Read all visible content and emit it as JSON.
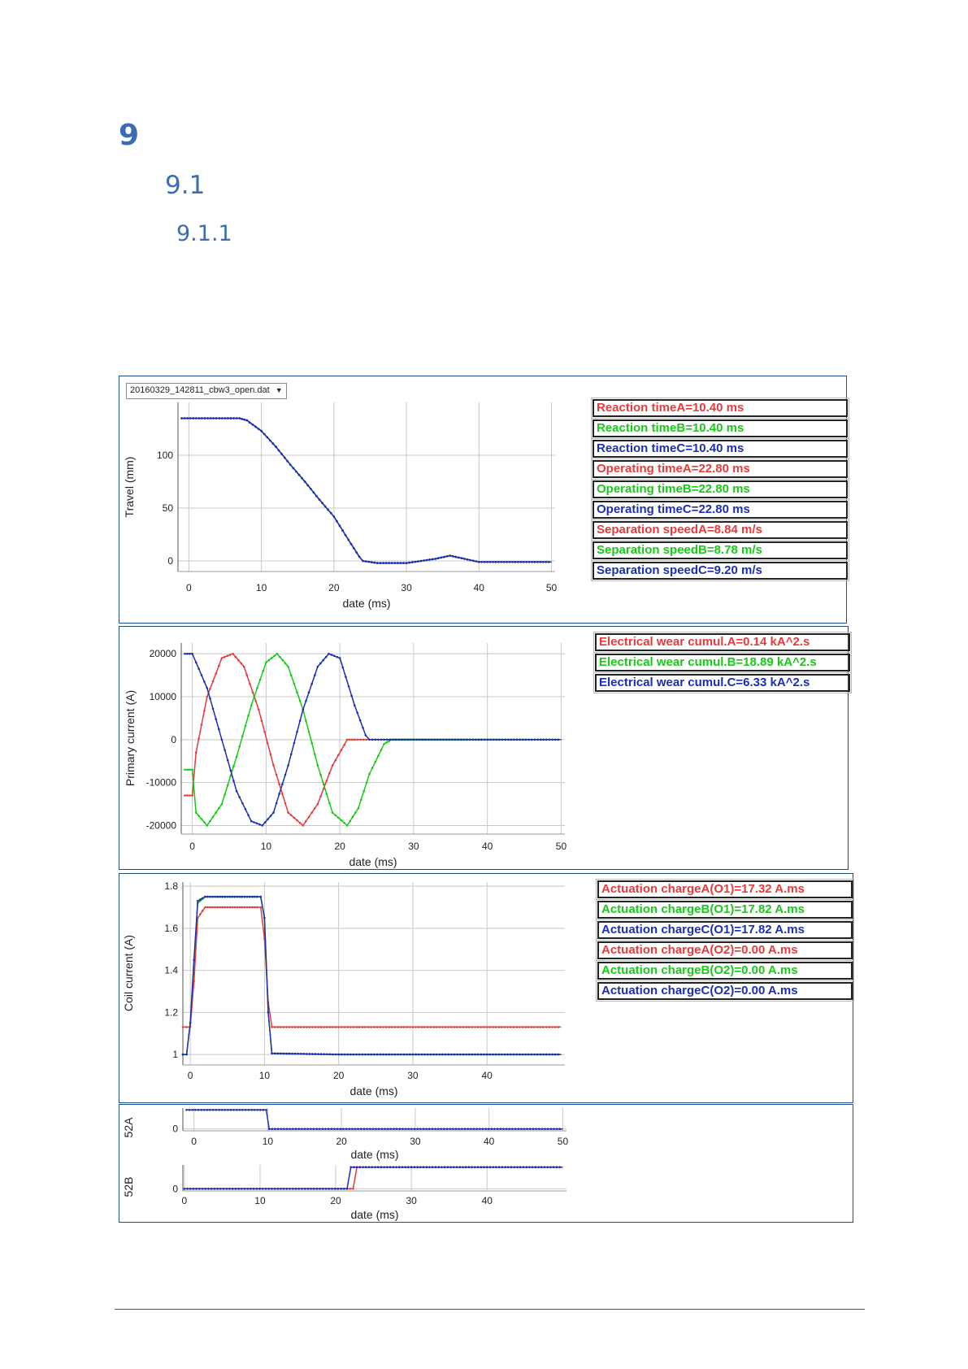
{
  "headings": {
    "h1": "9",
    "h2": "9.1",
    "h3": "9.1.1"
  },
  "colors": {
    "A": "#e53b3b",
    "B": "#18c918",
    "C": "#1c2fb0",
    "frame": "#1e4f86",
    "grid": "#c8c8c8"
  },
  "file_select": {
    "value": "20160329_142811_cbw3_open.dat",
    "icon": "dropdown-arrow-icon"
  },
  "legends": {
    "travel": [
      {
        "text": "Reaction timeA=10.40 ms",
        "phase": "A"
      },
      {
        "text": "Reaction timeB=10.40 ms",
        "phase": "B"
      },
      {
        "text": "Reaction timeC=10.40 ms",
        "phase": "C"
      },
      {
        "text": "Operating timeA=22.80 ms",
        "phase": "A"
      },
      {
        "text": "Operating timeB=22.80 ms",
        "phase": "B"
      },
      {
        "text": "Operating timeC=22.80 ms",
        "phase": "C"
      },
      {
        "text": "Separation speedA=8.84 m/s",
        "phase": "A"
      },
      {
        "text": "Separation speedB=8.78 m/s",
        "phase": "B"
      },
      {
        "text": "Separation speedC=9.20 m/s",
        "phase": "C"
      }
    ],
    "primary": [
      {
        "text": "Electrical wear cumul.A=0.14 kA^2.s",
        "phase": "A"
      },
      {
        "text": "Electrical wear cumul.B=18.89 kA^2.s",
        "phase": "B"
      },
      {
        "text": "Electrical wear cumul.C=6.33 kA^2.s",
        "phase": "C"
      }
    ],
    "coil": [
      {
        "text": "Actuation chargeA(O1)=17.32 A.ms",
        "phase": "A"
      },
      {
        "text": "Actuation chargeB(O1)=17.82 A.ms",
        "phase": "B"
      },
      {
        "text": "Actuation chargeC(O1)=17.82 A.ms",
        "phase": "C"
      },
      {
        "text": "Actuation chargeA(O2)=0.00 A.ms",
        "phase": "A"
      },
      {
        "text": "Actuation chargeB(O2)=0.00 A.ms",
        "phase": "B"
      },
      {
        "text": "Actuation chargeC(O2)=0.00 A.ms",
        "phase": "C"
      }
    ]
  },
  "chart_data": [
    {
      "id": "travel",
      "type": "line",
      "xlabel": "date (ms)",
      "ylabel": "Travel (mm)",
      "xlim": [
        -1.5,
        50.5
      ],
      "ylim": [
        -10,
        150
      ],
      "xticks": [
        0,
        10,
        20,
        30,
        40,
        50
      ],
      "yticks": [
        0,
        50,
        100
      ],
      "grid": true,
      "series": [
        {
          "phase": "A",
          "x": [
            -1,
            7,
            8,
            10,
            12,
            14,
            16,
            18,
            20,
            22,
            23.5,
            24,
            26,
            30,
            34,
            36,
            38,
            40,
            45,
            50
          ],
          "y": [
            135,
            135,
            133,
            123,
            108,
            91,
            75,
            58,
            42,
            20,
            4,
            0,
            -2,
            -2,
            2,
            5,
            2,
            -1,
            -1,
            -1
          ]
        },
        {
          "phase": "B",
          "x": [
            -1,
            7,
            8,
            10,
            12,
            14,
            16,
            18,
            20,
            22,
            23.5,
            24,
            26,
            30,
            34,
            36,
            38,
            40,
            45,
            50
          ],
          "y": [
            135,
            135,
            133,
            123,
            108,
            91,
            75,
            58,
            42,
            20,
            4,
            0,
            -2,
            -2,
            2,
            5,
            2,
            -1,
            -1,
            -1
          ]
        },
        {
          "phase": "C",
          "x": [
            -1,
            7,
            8,
            10,
            12,
            14,
            16,
            18,
            20,
            22,
            23.5,
            24,
            26,
            30,
            34,
            36,
            38,
            40,
            45,
            50
          ],
          "y": [
            135,
            135,
            133,
            123,
            108,
            91,
            75,
            58,
            42,
            20,
            4,
            0,
            -2,
            -2,
            2,
            5,
            2,
            -1,
            -1,
            -1
          ]
        }
      ]
    },
    {
      "id": "primary",
      "type": "line",
      "xlabel": "date (ms)",
      "ylabel": "Primary current (A)",
      "xlim": [
        -1.5,
        50.5
      ],
      "ylim": [
        -22000,
        22500
      ],
      "xticks": [
        0,
        10,
        20,
        30,
        40,
        50
      ],
      "yticks": [
        -20000,
        -10000,
        0,
        10000,
        20000
      ],
      "grid": true,
      "series": [
        {
          "phase": "A",
          "x": [
            -1,
            0,
            0.5,
            2,
            4,
            5.5,
            7,
            9,
            11,
            13,
            15,
            17,
            19,
            21,
            22,
            50
          ],
          "y": [
            -13000,
            -13000,
            -3000,
            10000,
            19000,
            20000,
            17000,
            7000,
            -6000,
            -17000,
            -20000,
            -15000,
            -6000,
            0,
            0,
            0
          ]
        },
        {
          "phase": "B",
          "x": [
            -1,
            0,
            0.5,
            2,
            4,
            6,
            8,
            10,
            11.5,
            13,
            15,
            17,
            19,
            21,
            22.5,
            24,
            26,
            27,
            50
          ],
          "y": [
            -7000,
            -7000,
            -17000,
            -20000,
            -15000,
            -4000,
            8000,
            18000,
            20000,
            17000,
            7000,
            -6000,
            -17000,
            -20000,
            -16000,
            -8000,
            -1000,
            0,
            0
          ]
        },
        {
          "phase": "C",
          "x": [
            -1,
            0,
            0.5,
            2,
            4,
            6,
            8,
            9.5,
            11,
            13,
            15,
            17,
            18.5,
            20,
            22,
            23.5,
            24,
            50
          ],
          "y": [
            20000,
            20000,
            18000,
            12000,
            0,
            -12000,
            -19000,
            -20000,
            -17000,
            -6000,
            7000,
            17000,
            20000,
            19000,
            8000,
            1000,
            0,
            0
          ]
        }
      ]
    },
    {
      "id": "coil",
      "type": "line",
      "xlabel": "date (ms)",
      "ylabel": "Coil current (A)",
      "xlim": [
        -1,
        50.5
      ],
      "ylim": [
        0.95,
        1.82
      ],
      "xticks": [
        0,
        10,
        20,
        30,
        40
      ],
      "yticks": [
        1,
        1.2,
        1.4,
        1.6,
        1.8
      ],
      "grid": true,
      "series": [
        {
          "phase": "A",
          "x": [
            -1,
            -0.5,
            0,
            0.5,
            1,
            2,
            3,
            4,
            5,
            6,
            7,
            8,
            9,
            9.5,
            10,
            10.5,
            11,
            20,
            30,
            40,
            50
          ],
          "y": [
            1.13,
            1.13,
            1.13,
            1.35,
            1.65,
            1.7,
            1.7,
            1.7,
            1.7,
            1.7,
            1.7,
            1.7,
            1.7,
            1.7,
            1.55,
            1.25,
            1.13,
            1.13,
            1.13,
            1.13,
            1.13
          ]
        },
        {
          "phase": "B",
          "x": [
            -1,
            -0.5,
            0,
            0.5,
            1,
            2,
            3,
            4,
            5,
            6,
            7,
            8,
            9,
            9.5,
            10,
            10.5,
            11,
            20,
            30,
            40,
            50
          ],
          "y": [
            1,
            1,
            1.15,
            1.45,
            1.72,
            1.75,
            1.75,
            1.75,
            1.75,
            1.75,
            1.75,
            1.75,
            1.75,
            1.75,
            1.65,
            1.2,
            1.005,
            1,
            1,
            1,
            1
          ]
        },
        {
          "phase": "C",
          "x": [
            -1,
            -0.5,
            0,
            0.5,
            1,
            2,
            3,
            4,
            5,
            6,
            7,
            8,
            9,
            9.5,
            10,
            10.5,
            11,
            20,
            30,
            40,
            50
          ],
          "y": [
            1,
            1,
            1.15,
            1.45,
            1.73,
            1.75,
            1.75,
            1.75,
            1.75,
            1.75,
            1.75,
            1.75,
            1.75,
            1.75,
            1.65,
            1.2,
            1.005,
            1,
            1,
            1,
            1
          ]
        }
      ]
    },
    {
      "id": "52a",
      "type": "line",
      "xlabel": "date (ms)",
      "ylabel": "52A",
      "xlim": [
        -1.5,
        50.5
      ],
      "ylim": [
        -0.1,
        1.1
      ],
      "xticks": [
        0,
        10,
        20,
        30,
        40,
        50
      ],
      "yticks": [
        0
      ],
      "grid": true,
      "series": [
        {
          "phase": "C",
          "x": [
            -1,
            9.8,
            10.2,
            50
          ],
          "y": [
            1,
            1,
            0,
            0
          ]
        }
      ]
    },
    {
      "id": "52b",
      "type": "line",
      "xlabel": "date (ms)",
      "ylabel": "52B",
      "xlim": [
        -0.2,
        50.5
      ],
      "ylim": [
        -0.1,
        1.1
      ],
      "xticks": [
        0,
        10,
        20,
        30,
        40
      ],
      "yticks": [
        0
      ],
      "grid": true,
      "series": [
        {
          "phase": "A",
          "x": [
            0,
            22.3,
            22.8,
            50
          ],
          "y": [
            0,
            0,
            1,
            1
          ]
        },
        {
          "phase": "C",
          "x": [
            0,
            21.5,
            22,
            50
          ],
          "y": [
            0,
            0,
            1,
            1
          ]
        }
      ]
    }
  ]
}
